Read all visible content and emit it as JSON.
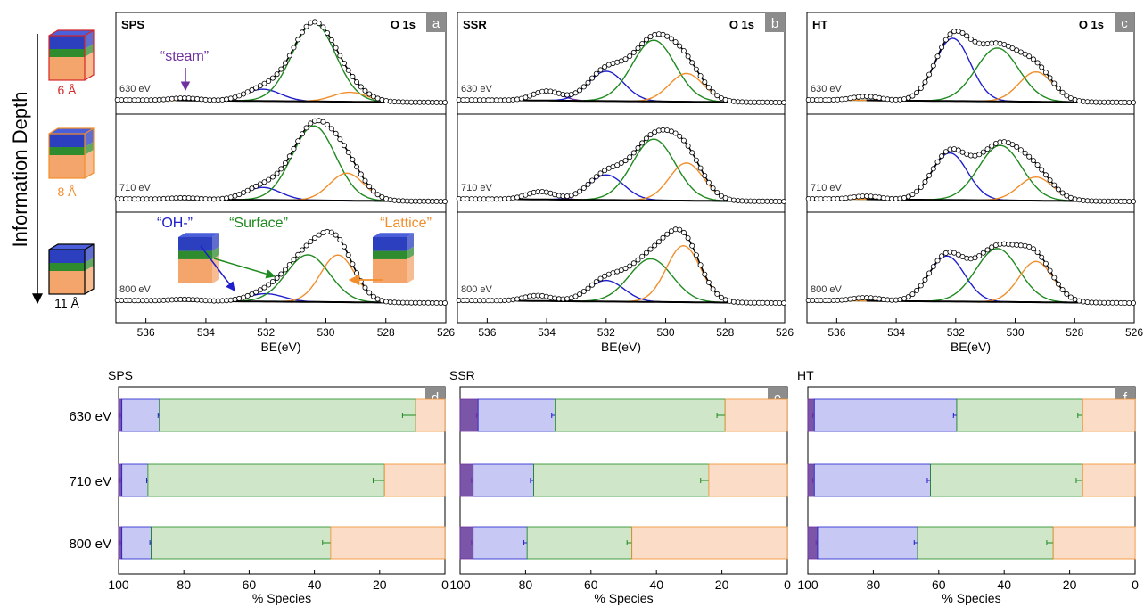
{
  "left": {
    "axis_label": "Information Depth",
    "depth_labels": [
      "6 Å",
      "8 Å",
      "11 Å"
    ],
    "depth_colors": [
      "#d62728",
      "#f28e2b",
      "#000000"
    ]
  },
  "annotations": {
    "steam": "“steam”",
    "oh": "“OH-”",
    "surface": "“Surface”",
    "lattice": "“Lattice”"
  },
  "colors": {
    "oh": "#1f1fcc",
    "surface": "#1f8a1f",
    "lattice": "#f28e2b",
    "steam": "#7030a0",
    "oh_fill": "#c8c8f5",
    "surface_fill": "#cfe6c8",
    "lattice_fill": "#fbdcc6",
    "steam_fill": "#7a55a8",
    "panel_tag_bg": "#8c8c8c"
  },
  "chart_data": [
    {
      "type": "line",
      "panel": "a",
      "sample": "SPS",
      "core_level": "O 1s",
      "xlabel": "BE(eV)",
      "xlim": [
        537,
        526
      ],
      "x_ticks": [
        "536",
        "534",
        "532",
        "530",
        "528",
        "526"
      ],
      "series": [
        {
          "energy": "630 eV",
          "peaks": {
            "steam": {
              "center": 534.7,
              "height": 0.03
            },
            "oh": {
              "center": 532.1,
              "height": 0.15
            },
            "surface": {
              "center": 530.4,
              "height": 1.0
            },
            "lattice": {
              "center": 529.2,
              "height": 0.12
            }
          }
        },
        {
          "energy": "710 eV",
          "peaks": {
            "steam": {
              "center": 534.7,
              "height": 0.02
            },
            "oh": {
              "center": 532.1,
              "height": 0.16
            },
            "surface": {
              "center": 530.4,
              "height": 0.95
            },
            "lattice": {
              "center": 529.3,
              "height": 0.35
            }
          }
        },
        {
          "energy": "800 eV",
          "peaks": {
            "steam": {
              "center": 534.7,
              "height": 0.02
            },
            "oh": {
              "center": 532.0,
              "height": 0.1
            },
            "surface": {
              "center": 530.6,
              "height": 0.6
            },
            "lattice": {
              "center": 529.6,
              "height": 0.6
            }
          }
        }
      ]
    },
    {
      "type": "line",
      "panel": "b",
      "sample": "SSR",
      "core_level": "O 1s",
      "xlabel": "BE(eV)",
      "xlim": [
        537,
        526
      ],
      "x_ticks": [
        "536",
        "534",
        "532",
        "530",
        "528",
        "526"
      ],
      "series": [
        {
          "energy": "630 eV",
          "peaks": {
            "steam": {
              "center": 534.0,
              "height": 0.12
            },
            "oh": {
              "center": 532.0,
              "height": 0.38
            },
            "surface": {
              "center": 530.4,
              "height": 0.78
            },
            "lattice": {
              "center": 529.3,
              "height": 0.36
            }
          }
        },
        {
          "energy": "710 eV",
          "peaks": {
            "steam": {
              "center": 534.2,
              "height": 0.1
            },
            "oh": {
              "center": 532.0,
              "height": 0.32
            },
            "surface": {
              "center": 530.4,
              "height": 0.78
            },
            "lattice": {
              "center": 529.3,
              "height": 0.48
            }
          }
        },
        {
          "energy": "800 eV",
          "peaks": {
            "steam": {
              "center": 534.3,
              "height": 0.07
            },
            "oh": {
              "center": 532.0,
              "height": 0.27
            },
            "surface": {
              "center": 530.5,
              "height": 0.55
            },
            "lattice": {
              "center": 529.4,
              "height": 0.72
            }
          }
        }
      ]
    },
    {
      "type": "line",
      "panel": "c",
      "sample": "HT",
      "core_level": "O 1s",
      "xlabel": "BE(eV)",
      "xlim": [
        537,
        526
      ],
      "x_ticks": [
        "536",
        "534",
        "532",
        "530",
        "528",
        "526"
      ],
      "series": [
        {
          "energy": "630 eV",
          "peaks": {
            "steam": {
              "center": 535.0,
              "height": 0.05
            },
            "oh": {
              "center": 532.1,
              "height": 0.8
            },
            "surface": {
              "center": 530.6,
              "height": 0.68
            },
            "lattice": {
              "center": 529.3,
              "height": 0.38
            }
          }
        },
        {
          "energy": "710 eV",
          "peaks": {
            "steam": {
              "center": 535.0,
              "height": 0.04
            },
            "oh": {
              "center": 532.2,
              "height": 0.6
            },
            "surface": {
              "center": 530.5,
              "height": 0.7
            },
            "lattice": {
              "center": 529.3,
              "height": 0.3
            }
          }
        },
        {
          "energy": "800 eV",
          "peaks": {
            "steam": {
              "center": 535.0,
              "height": 0.04
            },
            "oh": {
              "center": 532.3,
              "height": 0.58
            },
            "surface": {
              "center": 530.6,
              "height": 0.68
            },
            "lattice": {
              "center": 529.3,
              "height": 0.52
            }
          }
        }
      ]
    },
    {
      "type": "bar",
      "orientation": "horizontal-stacked",
      "panel": "d",
      "sample": "SPS",
      "xlabel": "% Species",
      "xlim": [
        100,
        0
      ],
      "x_ticks": [
        "100",
        "80",
        "60",
        "40",
        "20",
        "0"
      ],
      "categories": [
        "630 eV",
        "710 eV",
        "800 eV"
      ],
      "series": [
        {
          "key": "steam",
          "values": [
            1.0,
            1.0,
            1.0
          ],
          "errors": [
            0.5,
            0.5,
            0.5
          ]
        },
        {
          "key": "oh",
          "values": [
            11.5,
            8.0,
            9.0
          ],
          "errors": [
            0.4,
            0.4,
            0.4
          ]
        },
        {
          "key": "surface",
          "values": [
            78.5,
            72.5,
            55.0
          ],
          "errors": [
            4.0,
            3.5,
            2.5
          ]
        },
        {
          "key": "lattice",
          "values": [
            9.0,
            18.5,
            35.0
          ],
          "errors": [
            0.3,
            0.8,
            2.5
          ]
        }
      ]
    },
    {
      "type": "bar",
      "orientation": "horizontal-stacked",
      "panel": "e",
      "sample": "SSR",
      "xlabel": "% Species",
      "xlim": [
        100,
        0
      ],
      "x_ticks": [
        "100",
        "80",
        "60",
        "40",
        "20",
        "0"
      ],
      "categories": [
        "630 eV",
        "710 eV",
        "800 eV"
      ],
      "series": [
        {
          "key": "steam",
          "values": [
            5.5,
            4.0,
            4.0
          ],
          "errors": [
            0.5,
            0.5,
            0.5
          ]
        },
        {
          "key": "oh",
          "values": [
            23.5,
            18.5,
            16.5
          ],
          "errors": [
            1.0,
            1.0,
            1.0
          ]
        },
        {
          "key": "surface",
          "values": [
            52.0,
            53.5,
            32.0
          ],
          "errors": [
            2.5,
            2.5,
            1.5
          ]
        },
        {
          "key": "lattice",
          "values": [
            19.0,
            24.0,
            47.5
          ],
          "errors": [
            1.0,
            1.0,
            2.0
          ]
        }
      ]
    },
    {
      "type": "bar",
      "orientation": "horizontal-stacked",
      "panel": "f",
      "sample": "HT",
      "xlabel": "% Species",
      "xlim": [
        100,
        0
      ],
      "x_ticks": [
        "100",
        "80",
        "60",
        "40",
        "20",
        "0"
      ],
      "categories": [
        "630 eV",
        "710 eV",
        "800 eV"
      ],
      "series": [
        {
          "key": "steam",
          "values": [
            2.0,
            2.0,
            3.0
          ],
          "errors": [
            0.5,
            0.5,
            0.5
          ]
        },
        {
          "key": "oh",
          "values": [
            43.5,
            35.5,
            30.5
          ],
          "errors": [
            1.0,
            1.0,
            1.0
          ]
        },
        {
          "key": "surface",
          "values": [
            38.5,
            46.5,
            41.5
          ],
          "errors": [
            1.5,
            2.0,
            2.0
          ]
        },
        {
          "key": "lattice",
          "values": [
            16.0,
            16.0,
            25.0
          ],
          "errors": [
            0.8,
            0.8,
            1.2
          ]
        }
      ]
    }
  ]
}
